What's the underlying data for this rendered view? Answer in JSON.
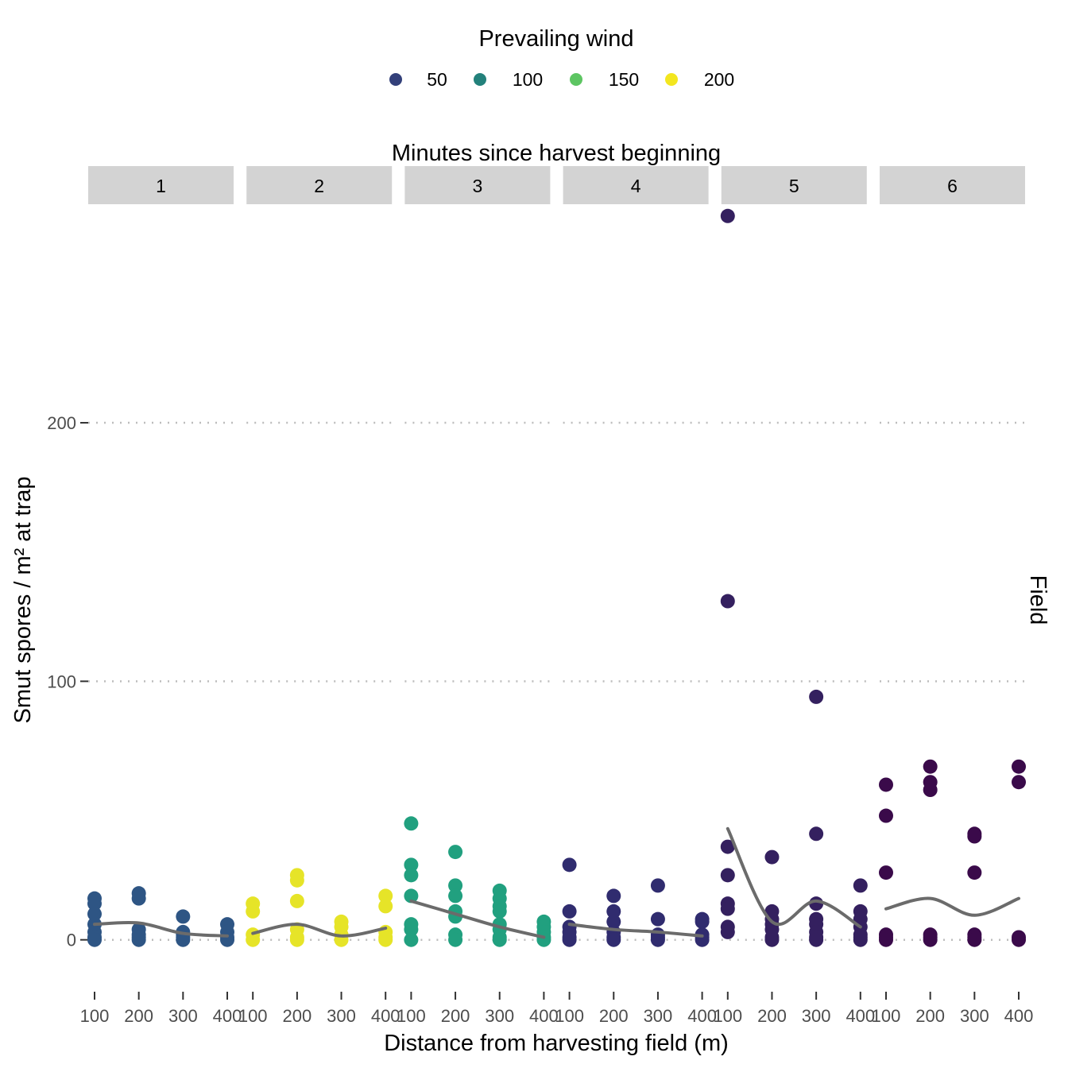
{
  "chart_data": {
    "type": "scatter",
    "xlabel": "Distance from harvesting field (m)",
    "ylabel": "Smut spores / m² at trap",
    "right_label": "Field",
    "facet_title": "Minutes since harvest beginning",
    "facets": [
      "1",
      "2",
      "3",
      "4",
      "5",
      "6"
    ],
    "x_ticks": [
      100,
      200,
      300,
      400
    ],
    "y_ticks": [
      0,
      100,
      200
    ],
    "ylim": [
      -17,
      283
    ],
    "grid": "horizontal-dotted",
    "legend": {
      "title": "Prevailing wind",
      "position": "top",
      "entries": [
        {
          "label": "50",
          "color": "#33407a"
        },
        {
          "label": "100",
          "color": "#23817b"
        },
        {
          "label": "150",
          "color": "#5dc562"
        },
        {
          "label": "200",
          "color": "#f3e61f"
        }
      ]
    },
    "panels": [
      {
        "facet": "1",
        "color": "#2e5584",
        "points": [
          [
            100,
            16
          ],
          [
            100,
            14
          ],
          [
            100,
            10
          ],
          [
            100,
            6
          ],
          [
            100,
            3
          ],
          [
            100,
            1
          ],
          [
            100,
            0
          ],
          [
            200,
            18
          ],
          [
            200,
            16
          ],
          [
            200,
            4
          ],
          [
            200,
            2
          ],
          [
            200,
            1
          ],
          [
            200,
            0
          ],
          [
            300,
            9
          ],
          [
            300,
            3
          ],
          [
            300,
            2
          ],
          [
            300,
            1
          ],
          [
            300,
            0
          ],
          [
            400,
            6
          ],
          [
            400,
            3
          ],
          [
            400,
            1
          ],
          [
            400,
            0
          ]
        ],
        "smooth": [
          [
            100,
            6
          ],
          [
            200,
            6.5
          ],
          [
            300,
            2.5
          ],
          [
            400,
            1.5
          ]
        ]
      },
      {
        "facet": "2",
        "color": "#e6e428",
        "points": [
          [
            100,
            14
          ],
          [
            100,
            11
          ],
          [
            100,
            2
          ],
          [
            100,
            0
          ],
          [
            200,
            25
          ],
          [
            200,
            23
          ],
          [
            200,
            15
          ],
          [
            200,
            4
          ],
          [
            200,
            1
          ],
          [
            200,
            0
          ],
          [
            300,
            7
          ],
          [
            300,
            5
          ],
          [
            300,
            2
          ],
          [
            300,
            0
          ],
          [
            400,
            17
          ],
          [
            400,
            13
          ],
          [
            400,
            3
          ],
          [
            400,
            1
          ],
          [
            400,
            0
          ]
        ],
        "smooth": [
          [
            100,
            2.5
          ],
          [
            200,
            6
          ],
          [
            300,
            1.5
          ],
          [
            400,
            4.5
          ]
        ]
      },
      {
        "facet": "3",
        "color": "#21a07f",
        "points": [
          [
            100,
            45
          ],
          [
            100,
            29
          ],
          [
            100,
            25
          ],
          [
            100,
            17
          ],
          [
            100,
            6
          ],
          [
            100,
            4
          ],
          [
            100,
            0
          ],
          [
            200,
            34
          ],
          [
            200,
            21
          ],
          [
            200,
            17
          ],
          [
            200,
            11
          ],
          [
            200,
            9
          ],
          [
            200,
            2
          ],
          [
            200,
            0
          ],
          [
            300,
            19
          ],
          [
            300,
            16
          ],
          [
            300,
            13
          ],
          [
            300,
            11
          ],
          [
            300,
            6
          ],
          [
            300,
            4
          ],
          [
            300,
            1
          ],
          [
            300,
            0
          ],
          [
            400,
            7
          ],
          [
            400,
            5
          ],
          [
            400,
            3
          ],
          [
            400,
            1
          ],
          [
            400,
            0
          ]
        ],
        "smooth": [
          [
            100,
            15
          ],
          [
            200,
            10
          ],
          [
            300,
            5
          ],
          [
            400,
            1
          ]
        ]
      },
      {
        "facet": "4",
        "color": "#302c6f",
        "points": [
          [
            100,
            29
          ],
          [
            100,
            11
          ],
          [
            100,
            5
          ],
          [
            100,
            3
          ],
          [
            100,
            1
          ],
          [
            100,
            0
          ],
          [
            200,
            17
          ],
          [
            200,
            11
          ],
          [
            200,
            7
          ],
          [
            200,
            3
          ],
          [
            200,
            1
          ],
          [
            200,
            0
          ],
          [
            300,
            21
          ],
          [
            300,
            8
          ],
          [
            300,
            2
          ],
          [
            300,
            1
          ],
          [
            300,
            0
          ],
          [
            400,
            8
          ],
          [
            400,
            7
          ],
          [
            400,
            2
          ],
          [
            400,
            1
          ],
          [
            400,
            0
          ]
        ],
        "smooth": [
          [
            100,
            6
          ],
          [
            200,
            4
          ],
          [
            300,
            3
          ],
          [
            400,
            1.5
          ]
        ]
      },
      {
        "facet": "5",
        "color": "#34205f",
        "points": [
          [
            100,
            280
          ],
          [
            100,
            131
          ],
          [
            100,
            36
          ],
          [
            100,
            25
          ],
          [
            100,
            14
          ],
          [
            100,
            12
          ],
          [
            100,
            5
          ],
          [
            100,
            3
          ],
          [
            200,
            32
          ],
          [
            200,
            11
          ],
          [
            200,
            8
          ],
          [
            200,
            6
          ],
          [
            200,
            4
          ],
          [
            200,
            1
          ],
          [
            200,
            0
          ],
          [
            300,
            94
          ],
          [
            300,
            41
          ],
          [
            300,
            14
          ],
          [
            300,
            8
          ],
          [
            300,
            6
          ],
          [
            300,
            3
          ],
          [
            300,
            1
          ],
          [
            300,
            0
          ],
          [
            400,
            21
          ],
          [
            400,
            11
          ],
          [
            400,
            8
          ],
          [
            400,
            5
          ],
          [
            400,
            2
          ],
          [
            400,
            1
          ],
          [
            400,
            0
          ]
        ],
        "smooth": [
          [
            100,
            43
          ],
          [
            200,
            7
          ],
          [
            300,
            15
          ],
          [
            400,
            5
          ]
        ]
      },
      {
        "facet": "6",
        "color": "#3a0a4a",
        "points": [
          [
            100,
            60
          ],
          [
            100,
            48
          ],
          [
            100,
            26
          ],
          [
            100,
            2
          ],
          [
            100,
            1
          ],
          [
            100,
            0
          ],
          [
            200,
            67
          ],
          [
            200,
            61
          ],
          [
            200,
            58
          ],
          [
            200,
            2
          ],
          [
            200,
            1
          ],
          [
            200,
            0
          ],
          [
            300,
            41
          ],
          [
            300,
            40
          ],
          [
            300,
            26
          ],
          [
            300,
            2
          ],
          [
            300,
            1
          ],
          [
            300,
            0
          ],
          [
            400,
            67
          ],
          [
            400,
            61
          ],
          [
            400,
            1
          ],
          [
            400,
            0
          ]
        ],
        "smooth": [
          [
            100,
            12
          ],
          [
            200,
            16
          ],
          [
            300,
            9.5
          ],
          [
            400,
            16
          ]
        ]
      }
    ]
  }
}
